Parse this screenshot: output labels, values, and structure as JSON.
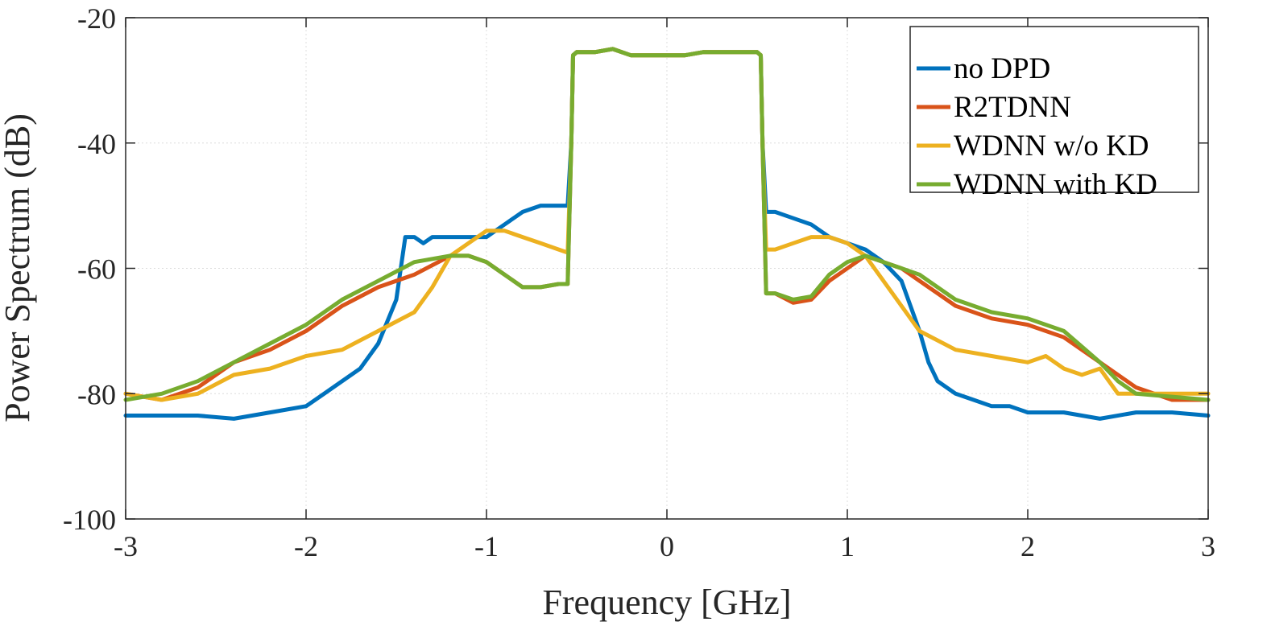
{
  "chart_data": {
    "type": "line",
    "title": "",
    "xlabel": "Frequency [GHz]",
    "ylabel": "Power Spectrum (dB)",
    "xlim": [
      -3,
      3
    ],
    "ylim": [
      -100,
      -20
    ],
    "xticks": [
      -3,
      -2,
      -1,
      0,
      1,
      2,
      3
    ],
    "xtick_labels": [
      "-3",
      "-2",
      "-1",
      "0",
      "1",
      "2",
      "3"
    ],
    "yticks": [
      -100,
      -80,
      -60,
      -40,
      -20
    ],
    "ytick_labels": [
      "-100",
      "-80",
      "-60",
      "-40",
      "-20"
    ],
    "grid": true,
    "legend_position": "top-right",
    "series": [
      {
        "name": "no DPD",
        "color": "#0072BD",
        "x": [
          -3.0,
          -2.8,
          -2.6,
          -2.4,
          -2.2,
          -2.0,
          -1.9,
          -1.8,
          -1.7,
          -1.6,
          -1.5,
          -1.45,
          -1.4,
          -1.35,
          -1.3,
          -1.2,
          -1.1,
          -1.0,
          -0.9,
          -0.8,
          -0.7,
          -0.6,
          -0.55,
          -0.53,
          -0.52,
          -0.5,
          -0.4,
          -0.3,
          -0.2,
          -0.1,
          0.0,
          0.1,
          0.2,
          0.3,
          0.4,
          0.5,
          0.52,
          0.53,
          0.55,
          0.6,
          0.7,
          0.8,
          0.9,
          1.0,
          1.1,
          1.2,
          1.3,
          1.4,
          1.45,
          1.5,
          1.6,
          1.7,
          1.8,
          1.9,
          2.0,
          2.2,
          2.4,
          2.6,
          2.8,
          3.0
        ],
        "values": [
          -83.5,
          -83.5,
          -83.5,
          -84,
          -83,
          -82,
          -80,
          -78,
          -76,
          -72,
          -65,
          -55,
          -55,
          -56,
          -55,
          -55,
          -55,
          -55,
          -53,
          -51,
          -50,
          -50,
          -50,
          -40,
          -26,
          -25.5,
          -25.5,
          -25,
          -26,
          -26,
          -26,
          -26,
          -25.5,
          -25.5,
          -25.5,
          -25.5,
          -26,
          -40,
          -51,
          -51,
          -52,
          -53,
          -55,
          -56,
          -57,
          -59,
          -62,
          -70,
          -75,
          -78,
          -80,
          -81,
          -82,
          -82,
          -83,
          -83,
          -84,
          -83,
          -83,
          -83.5
        ]
      },
      {
        "name": "R2TDNN",
        "color": "#D95319",
        "x": [
          -3.0,
          -2.8,
          -2.6,
          -2.4,
          -2.2,
          -2.0,
          -1.8,
          -1.6,
          -1.4,
          -1.2,
          -1.1,
          -1.0,
          -0.9,
          -0.8,
          -0.7,
          -0.6,
          -0.55,
          -0.53,
          -0.52,
          -0.5,
          -0.4,
          -0.3,
          -0.2,
          -0.1,
          0.0,
          0.1,
          0.2,
          0.3,
          0.4,
          0.5,
          0.52,
          0.53,
          0.55,
          0.6,
          0.7,
          0.8,
          0.9,
          1.0,
          1.1,
          1.2,
          1.3,
          1.4,
          1.5,
          1.6,
          1.8,
          2.0,
          2.2,
          2.4,
          2.5,
          2.6,
          2.8,
          3.0
        ],
        "values": [
          -80,
          -81,
          -79,
          -75,
          -73,
          -70,
          -66,
          -63,
          -61,
          -58,
          -58,
          -59,
          -61,
          -63,
          -63,
          -62.5,
          -62.5,
          -40,
          -26,
          -25.5,
          -25.5,
          -25,
          -26,
          -26,
          -26,
          -26,
          -25.5,
          -25.5,
          -25.5,
          -25.5,
          -26,
          -40,
          -64,
          -64,
          -65.5,
          -65,
          -62,
          -60,
          -58,
          -59,
          -60,
          -62,
          -64,
          -66,
          -68,
          -69,
          -71,
          -75,
          -77,
          -79,
          -81,
          -81
        ]
      },
      {
        "name": "WDNN w/o KD",
        "color": "#EDB120",
        "x": [
          -3.0,
          -2.8,
          -2.6,
          -2.4,
          -2.2,
          -2.0,
          -1.8,
          -1.6,
          -1.4,
          -1.3,
          -1.2,
          -1.1,
          -1.0,
          -0.9,
          -0.8,
          -0.7,
          -0.6,
          -0.55,
          -0.53,
          -0.52,
          -0.5,
          -0.4,
          -0.3,
          -0.2,
          -0.1,
          0.0,
          0.1,
          0.2,
          0.3,
          0.4,
          0.5,
          0.52,
          0.53,
          0.55,
          0.6,
          0.7,
          0.8,
          0.9,
          1.0,
          1.1,
          1.2,
          1.3,
          1.4,
          1.6,
          1.8,
          2.0,
          2.1,
          2.2,
          2.3,
          2.4,
          2.5,
          2.6,
          2.8,
          3.0
        ],
        "values": [
          -80,
          -81,
          -80,
          -77,
          -76,
          -74,
          -73,
          -70,
          -67,
          -63,
          -58,
          -56,
          -54,
          -54,
          -55,
          -56,
          -57,
          -57.5,
          -40,
          -26,
          -25.5,
          -25.5,
          -25,
          -26,
          -26,
          -26,
          -26,
          -25.5,
          -25.5,
          -25.5,
          -25.5,
          -26,
          -40,
          -57,
          -57,
          -56,
          -55,
          -55,
          -56,
          -58,
          -62,
          -66,
          -70,
          -73,
          -74,
          -75,
          -74,
          -76,
          -77,
          -76,
          -80,
          -80,
          -80,
          -80
        ]
      },
      {
        "name": "WDNN with KD",
        "color": "#77AC30",
        "x": [
          -3.0,
          -2.8,
          -2.6,
          -2.4,
          -2.2,
          -2.0,
          -1.8,
          -1.6,
          -1.4,
          -1.2,
          -1.1,
          -1.0,
          -0.9,
          -0.8,
          -0.7,
          -0.6,
          -0.55,
          -0.53,
          -0.52,
          -0.5,
          -0.4,
          -0.3,
          -0.2,
          -0.1,
          0.0,
          0.1,
          0.2,
          0.3,
          0.4,
          0.5,
          0.52,
          0.53,
          0.55,
          0.6,
          0.7,
          0.8,
          0.9,
          1.0,
          1.1,
          1.2,
          1.3,
          1.4,
          1.5,
          1.6,
          1.8,
          2.0,
          2.2,
          2.4,
          2.5,
          2.6,
          2.8,
          3.0
        ],
        "values": [
          -81,
          -80,
          -78,
          -75,
          -72,
          -69,
          -65,
          -62,
          -59,
          -58,
          -58,
          -59,
          -61,
          -63,
          -63,
          -62.5,
          -62.5,
          -40,
          -26,
          -25.5,
          -25.5,
          -25,
          -26,
          -26,
          -26,
          -26,
          -25.5,
          -25.5,
          -25.5,
          -25.5,
          -26,
          -40,
          -64,
          -64,
          -65,
          -64.5,
          -61,
          -59,
          -58,
          -59,
          -60,
          -61,
          -63,
          -65,
          -67,
          -68,
          -70,
          -75,
          -78,
          -80,
          -80.5,
          -81
        ]
      }
    ]
  }
}
